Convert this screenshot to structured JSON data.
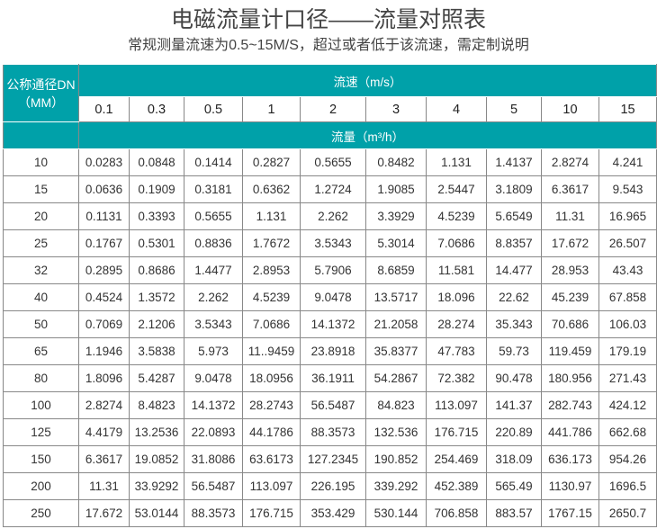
{
  "title": "电磁流量计口径——流量对照表",
  "subtitle": "常规测量流速为0.5~15M/S，超过或者低于该流速，需定制说明",
  "colors": {
    "header_bg": "#00a1a9",
    "header_text": "#ffffff",
    "border": "#888888"
  },
  "table": {
    "dn_header": [
      "公称通径DN",
      "（MM）"
    ],
    "velocity_header": "流速（m/s）",
    "flow_header": "流量（m³/h）",
    "velocities": [
      "0.1",
      "0.3",
      "0.5",
      "1",
      "2",
      "3",
      "4",
      "5",
      "10",
      "15"
    ],
    "rows": [
      {
        "dn": "10",
        "values": [
          "0.0283",
          "0.0848",
          "0.1414",
          "0.2827",
          "0.5655",
          "0.8482",
          "1.131",
          "1.4137",
          "2.8274",
          "4.241"
        ]
      },
      {
        "dn": "15",
        "values": [
          "0.0636",
          "0.1909",
          "0.3181",
          "0.6362",
          "1.2724",
          "1.9085",
          "2.5447",
          "3.1809",
          "6.3617",
          "9.543"
        ]
      },
      {
        "dn": "20",
        "values": [
          "0.1131",
          "0.3393",
          "0.5655",
          "1.131",
          "2.262",
          "3.3929",
          "4.5239",
          "5.6549",
          "11.31",
          "16.965"
        ]
      },
      {
        "dn": "25",
        "values": [
          "0.1767",
          "0.5301",
          "0.8836",
          "1.7672",
          "3.5343",
          "5.3014",
          "7.0686",
          "8.8357",
          "17.672",
          "26.507"
        ]
      },
      {
        "dn": "32",
        "values": [
          "0.2895",
          "0.8686",
          "1.4477",
          "2.8953",
          "5.7906",
          "8.6859",
          "11.581",
          "14.477",
          "28.953",
          "43.43"
        ]
      },
      {
        "dn": "40",
        "values": [
          "0.4524",
          "1.3572",
          "2.262",
          "4.5239",
          "9.0478",
          "13.5717",
          "18.096",
          "22.62",
          "45.239",
          "67.858"
        ]
      },
      {
        "dn": "50",
        "values": [
          "0.7069",
          "2.1206",
          "3.5343",
          "7.0686",
          "14.1372",
          "21.2058",
          "28.274",
          "35.343",
          "70.686",
          "106.03"
        ]
      },
      {
        "dn": "65",
        "values": [
          "1.1946",
          "3.5838",
          "5.973",
          "11..9459",
          "23.8918",
          "35.8377",
          "47.783",
          "59.73",
          "119.459",
          "179.19"
        ]
      },
      {
        "dn": "80",
        "values": [
          "1.8096",
          "5.4287",
          "9.0478",
          "18.0956",
          "36.1911",
          "54.2867",
          "72.382",
          "90.478",
          "180.956",
          "271.43"
        ]
      },
      {
        "dn": "100",
        "values": [
          "2.8274",
          "8.4823",
          "14.1372",
          "28.2743",
          "56.5487",
          "84.823",
          "113.097",
          "141.37",
          "282.743",
          "424.12"
        ]
      },
      {
        "dn": "125",
        "values": [
          "4.4179",
          "13.2536",
          "22.0893",
          "44.1786",
          "88.3573",
          "132.536",
          "176.715",
          "220.89",
          "441.786",
          "662.68"
        ]
      },
      {
        "dn": "150",
        "values": [
          "6.3617",
          "19.0852",
          "31.8086",
          "63.6173",
          "127.2345",
          "190.852",
          "254.469",
          "318.09",
          "636.173",
          "954.26"
        ]
      },
      {
        "dn": "200",
        "values": [
          "11.31",
          "33.9292",
          "56.5487",
          "113.097",
          "226.195",
          "339.292",
          "452.389",
          "565.49",
          "1130.97",
          "1696.5"
        ]
      },
      {
        "dn": "250",
        "values": [
          "17.672",
          "53.0144",
          "88.3573",
          "176.715",
          "353.429",
          "530.144",
          "706.858",
          "883.57",
          "1767.15",
          "2650.7"
        ]
      }
    ]
  }
}
